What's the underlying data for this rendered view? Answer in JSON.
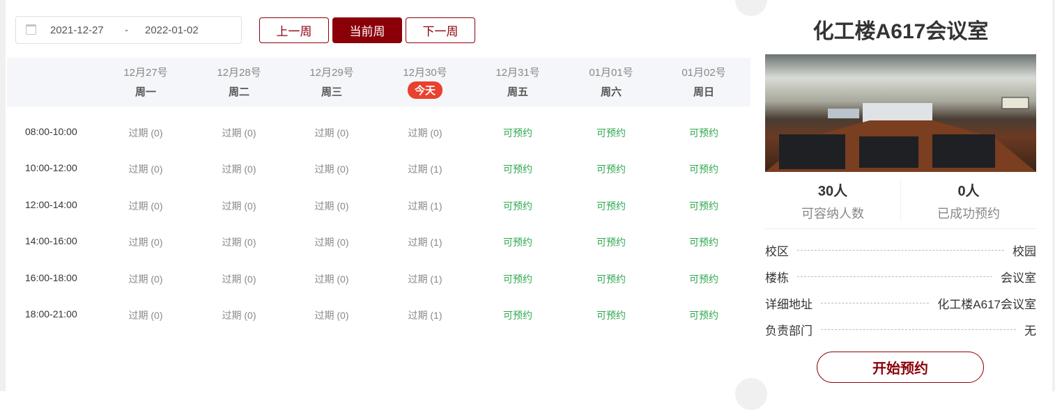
{
  "date_range": {
    "start": "2021-12-27",
    "separator": "-",
    "end": "2022-01-02"
  },
  "nav": {
    "prev": "上一周",
    "current": "当前周",
    "next": "下一周"
  },
  "days": [
    {
      "date": "12月27号",
      "weekday": "周一"
    },
    {
      "date": "12月28号",
      "weekday": "周二"
    },
    {
      "date": "12月29号",
      "weekday": "周三"
    },
    {
      "date": "12月30号",
      "weekday": "今天",
      "today": true
    },
    {
      "date": "12月31号",
      "weekday": "周五"
    },
    {
      "date": "01月01号",
      "weekday": "周六"
    },
    {
      "date": "01月02号",
      "weekday": "周日"
    }
  ],
  "slots": [
    {
      "time": "08:00-10:00",
      "cells": [
        "过期 (0)",
        "过期 (0)",
        "过期 (0)",
        "过期 (0)",
        "可预约",
        "可预约",
        "可预约"
      ]
    },
    {
      "time": "10:00-12:00",
      "cells": [
        "过期 (0)",
        "过期 (0)",
        "过期 (0)",
        "过期 (1)",
        "可预约",
        "可预约",
        "可预约"
      ]
    },
    {
      "time": "12:00-14:00",
      "cells": [
        "过期 (0)",
        "过期 (0)",
        "过期 (0)",
        "过期 (1)",
        "可预约",
        "可预约",
        "可预约"
      ]
    },
    {
      "time": "14:00-16:00",
      "cells": [
        "过期 (0)",
        "过期 (0)",
        "过期 (0)",
        "过期 (1)",
        "可预约",
        "可预约",
        "可预约"
      ]
    },
    {
      "time": "16:00-18:00",
      "cells": [
        "过期 (0)",
        "过期 (0)",
        "过期 (0)",
        "过期 (1)",
        "可预约",
        "可预约",
        "可预约"
      ]
    },
    {
      "time": "18:00-21:00",
      "cells": [
        "过期 (0)",
        "过期 (0)",
        "过期 (0)",
        "过期 (1)",
        "可预约",
        "可预约",
        "可预约"
      ]
    }
  ],
  "room": {
    "title": "化工楼A617会议室",
    "capacity": "30人",
    "capacity_label": "可容纳人数",
    "booked": "0人",
    "booked_label": "已成功预约",
    "info": [
      {
        "label": "校区",
        "value": "校园"
      },
      {
        "label": "楼栋",
        "value": "会议室"
      },
      {
        "label": "详细地址",
        "value": "化工楼A617会议室"
      },
      {
        "label": "负责部门",
        "value": "无"
      }
    ],
    "start_button": "开始预约"
  },
  "colors": {
    "brand": "#8b0008",
    "today": "#e8412f",
    "available": "#2fa84f"
  }
}
